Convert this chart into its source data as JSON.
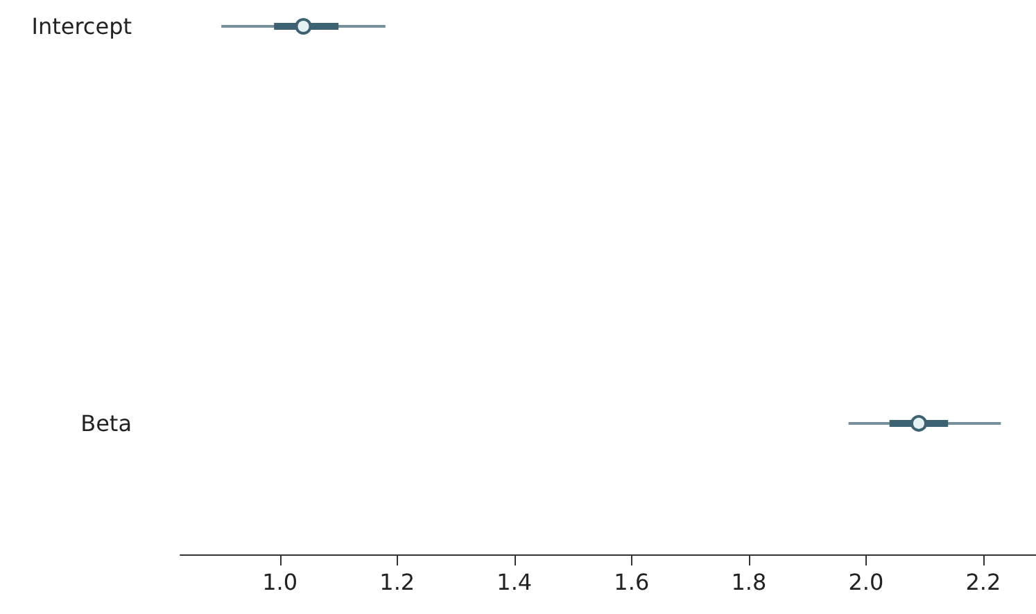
{
  "chart_data": {
    "type": "box",
    "orientation": "horizontal",
    "categories": [
      "Intercept",
      "Beta"
    ],
    "boxes": [
      {
        "low": 0.9,
        "q1": 0.99,
        "median": 1.04,
        "q3": 1.1,
        "high": 1.18
      },
      {
        "low": 1.97,
        "q1": 2.04,
        "median": 2.09,
        "q3": 2.14,
        "high": 2.23
      }
    ],
    "color": "#3d6272",
    "marker": "circle",
    "grid": false,
    "xlim": [
      0.83,
      2.29
    ],
    "xticks": [
      {
        "value": 1,
        "label": "1.0"
      },
      {
        "value": 1.2,
        "label": "1.2"
      },
      {
        "value": 1.4,
        "label": "1.4"
      },
      {
        "value": 1.6,
        "label": "1.6"
      },
      {
        "value": 1.8,
        "label": "1.8"
      },
      {
        "value": 2,
        "label": "2.0"
      },
      {
        "value": 2.2,
        "label": "2.2"
      }
    ]
  }
}
